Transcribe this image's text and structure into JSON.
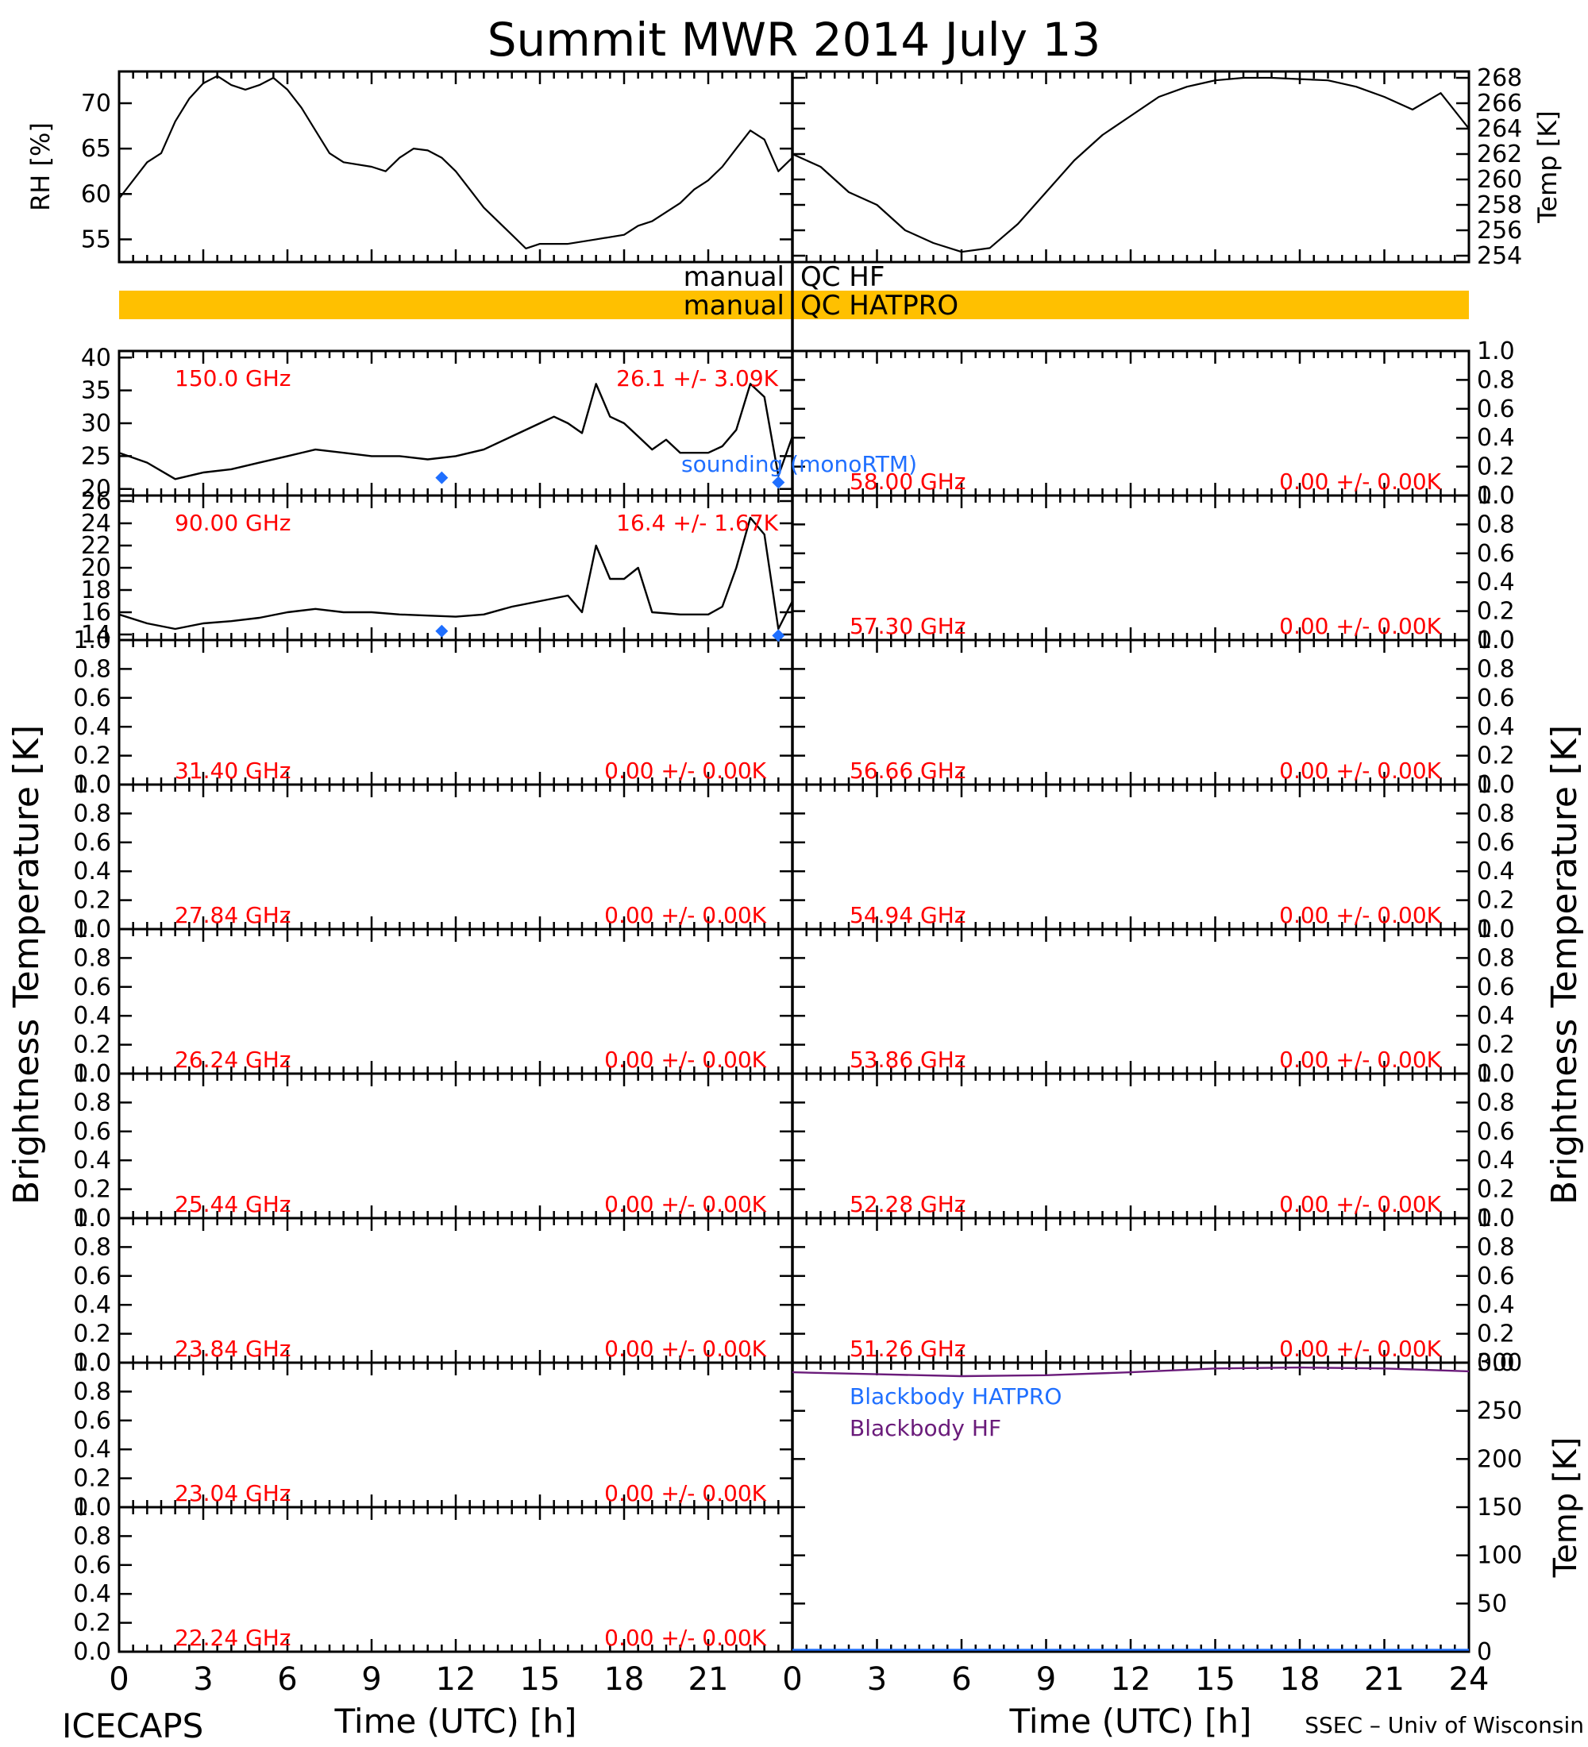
{
  "title": "Summit MWR 2014 July 13",
  "footer": {
    "left": "ICECAPS",
    "right": "SSEC – Univ of Wisconsin"
  },
  "colors": {
    "red": "#ff0000",
    "blue": "#1f6fff",
    "purple": "#6a1b7a",
    "qc_bar": "#ffc000",
    "black": "#000000"
  },
  "qc": {
    "hf_label": "manual QC HF",
    "hatpro_label": "manual QC HATPRO",
    "hatpro_bar": true,
    "hf_bar": false
  },
  "y_title_left": "Brightness Temperature [K]",
  "y_title_right": "Brightness Temperature [K]",
  "chart_data": [
    {
      "id": "rh",
      "type": "line",
      "ylabel": "RH [%]",
      "ylim": [
        52.5,
        73.5
      ],
      "yticks": [
        "55",
        "60",
        "65",
        "70"
      ],
      "xlim": [
        0,
        24
      ],
      "series": [
        {
          "values": [
            [
              0,
              59.5
            ],
            [
              0.5,
              61.5
            ],
            [
              1,
              63.5
            ],
            [
              1.5,
              64.5
            ],
            [
              2,
              68
            ],
            [
              2.5,
              70.5
            ],
            [
              3,
              72.2
            ],
            [
              3.5,
              73
            ],
            [
              4,
              72
            ],
            [
              4.5,
              71.5
            ],
            [
              5,
              72
            ],
            [
              5.5,
              72.8
            ],
            [
              6,
              71.5
            ],
            [
              6.5,
              69.5
            ],
            [
              7,
              67
            ],
            [
              7.5,
              64.5
            ],
            [
              8,
              63.5
            ],
            [
              9,
              63
            ],
            [
              9.5,
              62.5
            ],
            [
              10,
              64
            ],
            [
              10.5,
              65
            ],
            [
              11,
              64.8
            ],
            [
              11.5,
              64
            ],
            [
              12,
              62.5
            ],
            [
              12.5,
              60.5
            ],
            [
              13,
              58.5
            ],
            [
              13.5,
              57
            ],
            [
              14,
              55.5
            ],
            [
              14.5,
              54
            ],
            [
              15,
              54.5
            ],
            [
              16,
              54.5
            ],
            [
              17,
              55
            ],
            [
              18,
              55.5
            ],
            [
              18.5,
              56.5
            ],
            [
              19,
              57
            ],
            [
              20,
              59
            ],
            [
              20.5,
              60.5
            ],
            [
              21,
              61.5
            ],
            [
              21.5,
              63
            ],
            [
              22,
              65
            ],
            [
              22.5,
              67
            ],
            [
              23,
              66
            ],
            [
              23.5,
              62.5
            ],
            [
              24,
              64
            ]
          ]
        }
      ]
    },
    {
      "id": "temp_sfc",
      "type": "line",
      "ylabel": "Temp [K]",
      "ylim": [
        253.5,
        268.5
      ],
      "yticks": [
        "254",
        "256",
        "258",
        "260",
        "262",
        "264",
        "266",
        "268"
      ],
      "xlim": [
        0,
        24
      ],
      "series": [
        {
          "values": [
            [
              0,
              262
            ],
            [
              1,
              261
            ],
            [
              2,
              259
            ],
            [
              3,
              258
            ],
            [
              4,
              256
            ],
            [
              5,
              255
            ],
            [
              6,
              254.3
            ],
            [
              7,
              254.6
            ],
            [
              8,
              256.5
            ],
            [
              9,
              259
            ],
            [
              10,
              261.5
            ],
            [
              11,
              263.5
            ],
            [
              12,
              265
            ],
            [
              13,
              266.5
            ],
            [
              14,
              267.3
            ],
            [
              15,
              267.8
            ],
            [
              16,
              268
            ],
            [
              17,
              268
            ],
            [
              18,
              267.9
            ],
            [
              19,
              267.8
            ],
            [
              20,
              267.3
            ],
            [
              21,
              266.5
            ],
            [
              22,
              265.5
            ],
            [
              23,
              266.8
            ],
            [
              24,
              264
            ]
          ]
        }
      ]
    },
    {
      "id": "ch150",
      "type": "line",
      "channel": "150.0 GHz",
      "stats": "26.1 +/-  3.09K",
      "ylim": [
        19,
        41
      ],
      "yticks": [
        "20",
        "25",
        "30",
        "35",
        "40"
      ],
      "xlim": [
        0,
        24
      ],
      "sounding_label": "sounding (monoRTM)",
      "sounding_points": [
        [
          11.5,
          21.7
        ],
        [
          23.5,
          21.0
        ]
      ],
      "series": [
        {
          "values": [
            [
              0,
              25.5
            ],
            [
              1,
              24
            ],
            [
              2,
              21.5
            ],
            [
              3,
              22.5
            ],
            [
              4,
              23
            ],
            [
              5,
              24
            ],
            [
              6,
              25
            ],
            [
              7,
              26
            ],
            [
              8,
              25.5
            ],
            [
              9,
              25
            ],
            [
              10,
              25
            ],
            [
              11,
              24.5
            ],
            [
              12,
              25
            ],
            [
              13,
              26
            ],
            [
              14,
              28
            ],
            [
              15,
              30
            ],
            [
              15.5,
              31
            ],
            [
              16,
              30
            ],
            [
              16.5,
              28.5
            ],
            [
              17,
              36
            ],
            [
              17.5,
              31
            ],
            [
              18,
              30
            ],
            [
              18.5,
              28
            ],
            [
              19,
              26
            ],
            [
              19.5,
              27.5
            ],
            [
              20,
              25.5
            ],
            [
              21,
              25.5
            ],
            [
              21.5,
              26.5
            ],
            [
              22,
              29
            ],
            [
              22.5,
              36
            ],
            [
              23,
              34
            ],
            [
              23.5,
              22
            ],
            [
              24,
              28
            ]
          ]
        }
      ]
    },
    {
      "id": "ch90",
      "type": "line",
      "channel": "90.00 GHz",
      "stats": "16.4 +/-  1.67K",
      "ylim": [
        13.5,
        26.5
      ],
      "yticks": [
        "14",
        "16",
        "18",
        "20",
        "22",
        "24",
        "26"
      ],
      "xlim": [
        0,
        24
      ],
      "sounding_points": [
        [
          11.5,
          14.3
        ],
        [
          23.5,
          13.9
        ]
      ],
      "series": [
        {
          "values": [
            [
              0,
              15.8
            ],
            [
              1,
              15
            ],
            [
              2,
              14.5
            ],
            [
              3,
              15
            ],
            [
              4,
              15.2
            ],
            [
              5,
              15.5
            ],
            [
              6,
              16
            ],
            [
              7,
              16.3
            ],
            [
              8,
              16
            ],
            [
              9,
              16
            ],
            [
              10,
              15.8
            ],
            [
              11,
              15.7
            ],
            [
              12,
              15.6
            ],
            [
              13,
              15.8
            ],
            [
              14,
              16.5
            ],
            [
              15,
              17
            ],
            [
              16,
              17.5
            ],
            [
              16.5,
              16
            ],
            [
              17,
              22
            ],
            [
              17.5,
              19
            ],
            [
              18,
              19
            ],
            [
              18.5,
              20
            ],
            [
              19,
              16
            ],
            [
              20,
              15.8
            ],
            [
              21,
              15.8
            ],
            [
              21.5,
              16.5
            ],
            [
              22,
              20
            ],
            [
              22.5,
              24.5
            ],
            [
              23,
              23
            ],
            [
              23.5,
              14.5
            ],
            [
              24,
              17
            ]
          ]
        }
      ]
    }
  ],
  "blackbody": {
    "ylabel": "Temp [K]",
    "ylim": [
      0,
      300
    ],
    "yticks": [
      "0",
      "50",
      "100",
      "150",
      "200",
      "250",
      "300"
    ],
    "legend": [
      "Blackbody HATPRO",
      "Blackbody HF"
    ],
    "series": [
      {
        "name": "Blackbody HF",
        "values": [
          [
            0,
            290
          ],
          [
            3,
            288
          ],
          [
            6,
            286
          ],
          [
            9,
            287
          ],
          [
            12,
            290
          ],
          [
            15,
            294
          ],
          [
            18,
            295
          ],
          [
            21,
            294
          ],
          [
            24,
            291
          ]
        ]
      },
      {
        "name": "Blackbody HATPRO",
        "values": [
          [
            0,
            2
          ],
          [
            24,
            2
          ]
        ]
      }
    ]
  },
  "empty_ylabels": [
    "0.0",
    "0.2",
    "0.4",
    "0.6",
    "0.8",
    "1.0"
  ],
  "left_channels": [
    {
      "freq": "31.40 GHz",
      "stats": "0.00 +/-  0.00K"
    },
    {
      "freq": "27.84 GHz",
      "stats": "0.00 +/-  0.00K"
    },
    {
      "freq": "26.24 GHz",
      "stats": "0.00 +/-  0.00K"
    },
    {
      "freq": "25.44 GHz",
      "stats": "0.00 +/-  0.00K"
    },
    {
      "freq": "23.84 GHz",
      "stats": "0.00 +/-  0.00K"
    },
    {
      "freq": "23.04 GHz",
      "stats": "0.00 +/-  0.00K"
    },
    {
      "freq": "22.24 GHz",
      "stats": "0.00 +/-  0.00K"
    }
  ],
  "right_channels": [
    {
      "freq": "58.00 GHz",
      "stats": "0.00 +/-  0.00K"
    },
    {
      "freq": "57.30 GHz",
      "stats": "0.00 +/-  0.00K"
    },
    {
      "freq": "56.66 GHz",
      "stats": "0.00 +/-  0.00K"
    },
    {
      "freq": "54.94 GHz",
      "stats": "0.00 +/-  0.00K"
    },
    {
      "freq": "53.86 GHz",
      "stats": "0.00 +/-  0.00K"
    },
    {
      "freq": "52.28 GHz",
      "stats": "0.00 +/-  0.00K"
    },
    {
      "freq": "51.26 GHz",
      "stats": "0.00 +/-  0.00K"
    }
  ],
  "x_axis": {
    "ticks": [
      "0",
      "3",
      "6",
      "9",
      "12",
      "15",
      "18",
      "21"
    ],
    "last_tick": "24",
    "label": "Time (UTC) [h]"
  }
}
